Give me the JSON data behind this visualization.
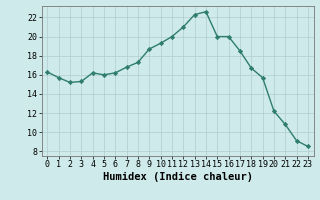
{
  "x": [
    0,
    1,
    2,
    3,
    4,
    5,
    6,
    7,
    8,
    9,
    10,
    11,
    12,
    13,
    14,
    15,
    16,
    17,
    18,
    19,
    20,
    21,
    22,
    23
  ],
  "y": [
    16.3,
    15.7,
    15.2,
    15.3,
    16.2,
    16.0,
    16.2,
    16.8,
    17.3,
    18.7,
    19.3,
    20.0,
    21.0,
    22.3,
    22.6,
    20.0,
    20.0,
    18.5,
    16.7,
    15.7,
    12.2,
    10.8,
    9.1,
    8.5
  ],
  "line_color": "#2E7D6E",
  "marker": "D",
  "markersize": 2.2,
  "linewidth": 1.0,
  "xlabel": "Humidex (Indice chaleur)",
  "xlim": [
    -0.5,
    23.5
  ],
  "ylim": [
    7.5,
    23.2
  ],
  "yticks": [
    8,
    10,
    12,
    14,
    16,
    18,
    20,
    22
  ],
  "xticks": [
    0,
    1,
    2,
    3,
    4,
    5,
    6,
    7,
    8,
    9,
    10,
    11,
    12,
    13,
    14,
    15,
    16,
    17,
    18,
    19,
    20,
    21,
    22,
    23
  ],
  "bg_color": "#ceeaea",
  "grid_color": "#b0cccc",
  "xlabel_fontsize": 7.5,
  "tick_fontsize": 6.0
}
